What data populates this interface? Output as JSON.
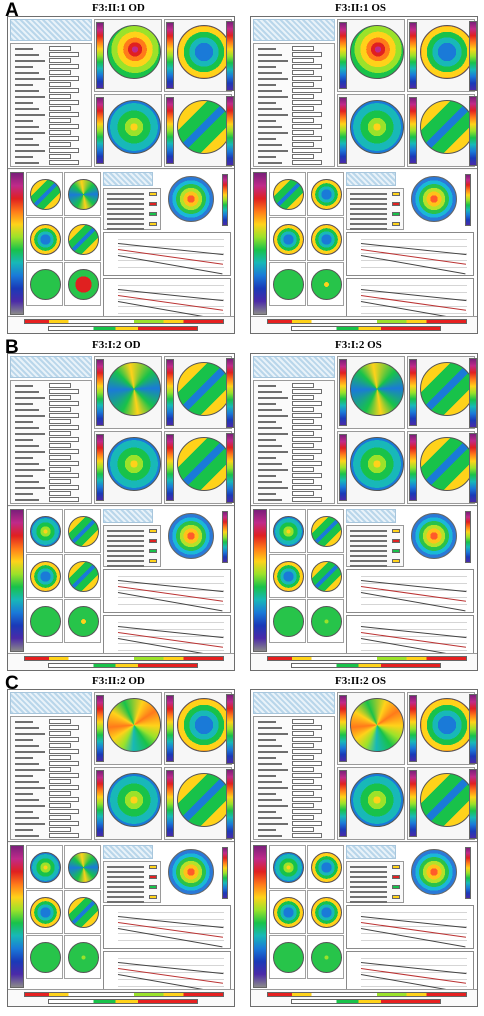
{
  "panels": [
    {
      "letter": "A",
      "od_title": "F3:II:1 OD",
      "os_title": "F3:II:1 OS"
    },
    {
      "letter": "B",
      "od_title": "F3:I:2 OD",
      "os_title": "F3:I:2 OS"
    },
    {
      "letter": "C",
      "od_title": "F3:II:2 OD",
      "os_title": "F3:II:2 OS"
    }
  ],
  "colors": {
    "red": "#e02020",
    "yellow": "#ffd21a",
    "green": "#18c24a",
    "blue": "#1a7ad8",
    "violet": "#7a1f7a"
  }
}
